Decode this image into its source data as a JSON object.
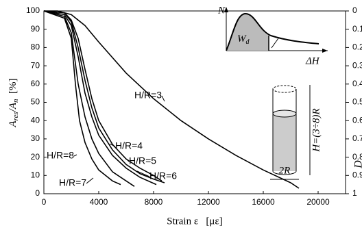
{
  "chart_data": {
    "type": "line",
    "xlabel": "Strain ε   [με]",
    "ylabel_parts": [
      "A",
      "res",
      "/A",
      "n",
      "  [%]"
    ],
    "y2label": "D",
    "xlim": [
      0,
      22000
    ],
    "xticks": [
      0,
      4000,
      8000,
      12000,
      16000,
      20000
    ],
    "ylim": [
      0,
      100
    ],
    "yticks": [
      0,
      10,
      20,
      30,
      40,
      50,
      60,
      70,
      80,
      90,
      100
    ],
    "y2lim": [
      1,
      0
    ],
    "y2ticks": [
      0,
      0.1,
      0.2,
      0.3,
      0.4,
      0.5,
      0.6,
      0.7,
      0.8,
      0.9,
      1
    ],
    "color": "#000000",
    "series": [
      {
        "name": "H/R=3",
        "x": [
          0,
          1000,
          2000,
          3000,
          4000,
          6000,
          8000,
          10000,
          12000,
          14000,
          16000,
          18000,
          18600
        ],
        "values": [
          100,
          100,
          98,
          92,
          83,
          66,
          52,
          40,
          30,
          21,
          13,
          6,
          3
        ]
      },
      {
        "name": "H/R=4",
        "x": [
          0,
          1500,
          2000,
          2500,
          3000,
          3500,
          4000,
          5000,
          6000,
          7000,
          8000,
          8600
        ],
        "values": [
          100,
          99,
          95,
          85,
          68,
          52,
          40,
          27,
          19,
          14,
          10,
          7
        ]
      },
      {
        "name": "H/R=5",
        "x": [
          0,
          1500,
          2000,
          2500,
          3000,
          3500,
          4000,
          5000,
          6000,
          7000,
          8000,
          8800
        ],
        "values": [
          100,
          99,
          94,
          80,
          62,
          47,
          36,
          24,
          16,
          11,
          8,
          6
        ]
      },
      {
        "name": "H/R=6",
        "x": [
          0,
          1500,
          2000,
          2500,
          3000,
          3500,
          4000,
          5000,
          6000,
          7000,
          8200
        ],
        "values": [
          100,
          98,
          92,
          75,
          55,
          42,
          32,
          21,
          14,
          9,
          5
        ]
      },
      {
        "name": "H/R=7",
        "x": [
          0,
          1500,
          2000,
          2500,
          3000,
          3500,
          4000,
          5000,
          6000,
          6600
        ],
        "values": [
          100,
          97,
          88,
          60,
          42,
          30,
          22,
          12,
          7,
          4
        ]
      },
      {
        "name": "H/R=8",
        "x": [
          0,
          1500,
          2000,
          2300,
          2600,
          3000,
          3500,
          4000,
          5000,
          5600
        ],
        "values": [
          100,
          96,
          85,
          60,
          40,
          28,
          19,
          13,
          7,
          5
        ]
      }
    ],
    "inset": {
      "y_label": "N",
      "x_label": "ΔH",
      "area": "W",
      "area_sub": "d"
    },
    "specimen": {
      "height": "H=(3÷8)R",
      "diameter": "2R"
    }
  }
}
